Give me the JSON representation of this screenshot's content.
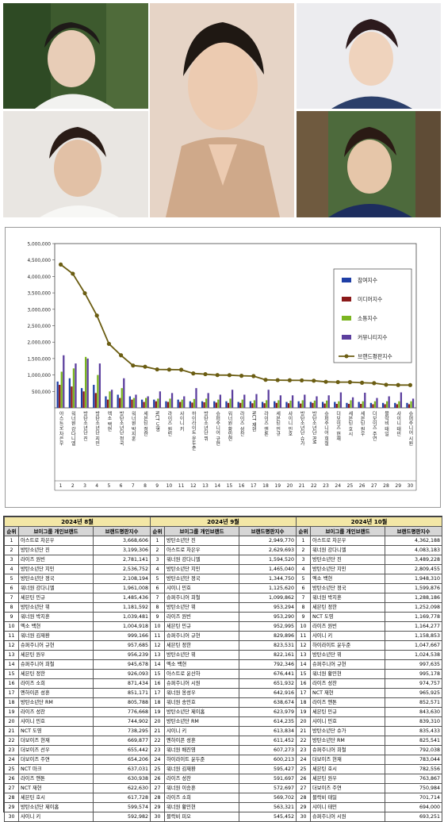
{
  "photos": [
    {
      "name": "photo-top-left",
      "desc": "portrait"
    },
    {
      "name": "photo-bottom-left",
      "desc": "portrait"
    },
    {
      "name": "photo-center",
      "desc": "portrait"
    },
    {
      "name": "photo-top-right",
      "desc": "portrait"
    },
    {
      "name": "photo-bottom-right",
      "desc": "portrait"
    }
  ],
  "chart_data": {
    "type": "bar",
    "ylim": [
      0,
      5000000
    ],
    "yticks": [
      "5,000,000",
      "4,500,000",
      "4,000,000",
      "3,500,000",
      "3,000,000",
      "2,500,000",
      "2,000,000",
      "1,500,000",
      "1,000,000",
      "500,000"
    ],
    "categories": [
      "아스트로 차은우",
      "워너원 강다니엘",
      "방탄소년단 진",
      "방탄소년단 지민",
      "엑소 백현",
      "방탄소년단 정국",
      "워너원 박지훈",
      "세븐틴 정한",
      "NCT 도영",
      "라이즈 원빈",
      "샤이니 키",
      "하이라이트 윤두준",
      "방탄소년단 뷔",
      "슈퍼주니어 규현",
      "워너원 황민현",
      "라이즈 성찬",
      "NCT 재현",
      "라이즈 앤톤",
      "세븐틴 민규",
      "샤이니 민호",
      "방탄소년단 슈가",
      "방탄소년단 RM",
      "슈퍼주니어 희철",
      "더보이즈 현재",
      "세븐틴 호시",
      "세븐틴 원우",
      "더보이즈 주연",
      "블락비 태일",
      "샤이니 태민",
      "슈퍼주니어 시원"
    ],
    "ranks": [
      "1",
      "2",
      "3",
      "4",
      "5",
      "6",
      "7",
      "8",
      "9",
      "10",
      "11",
      "12",
      "13",
      "14",
      "15",
      "16",
      "17",
      "18",
      "19",
      "20",
      "21",
      "22",
      "23",
      "24",
      "25",
      "26",
      "27",
      "28",
      "29",
      "30"
    ],
    "series": [
      {
        "name": "참여지수",
        "color": "#1f3fa6",
        "values": [
          800000,
          900000,
          600000,
          700000,
          350000,
          400000,
          350000,
          250000,
          250000,
          200000,
          250000,
          200000,
          200000,
          200000,
          200000,
          180000,
          200000,
          180000,
          200000,
          180000,
          200000,
          180000,
          180000,
          180000,
          150000,
          180000,
          150000,
          150000,
          150000,
          150000
        ]
      },
      {
        "name": "미디어지수",
        "color": "#8b1a1a",
        "values": [
          700000,
          650000,
          500000,
          450000,
          250000,
          300000,
          250000,
          180000,
          200000,
          180000,
          180000,
          160000,
          170000,
          160000,
          150000,
          150000,
          140000,
          140000,
          150000,
          140000,
          130000,
          150000,
          130000,
          120000,
          120000,
          120000,
          110000,
          110000,
          110000,
          110000
        ]
      },
      {
        "name": "소통지수",
        "color": "#7bb520",
        "values": [
          1100000,
          1200000,
          1550000,
          1000000,
          500000,
          600000,
          300000,
          300000,
          280000,
          280000,
          250000,
          270000,
          280000,
          250000,
          280000,
          250000,
          230000,
          230000,
          230000,
          220000,
          230000,
          220000,
          220000,
          200000,
          230000,
          200000,
          200000,
          200000,
          200000,
          200000
        ]
      },
      {
        "name": "커뮤니티지수",
        "color": "#5c3f9e",
        "values": [
          1600000,
          1350000,
          1500000,
          1350000,
          550000,
          900000,
          400000,
          350000,
          500000,
          450000,
          350000,
          600000,
          450000,
          400000,
          550000,
          400000,
          420000,
          550000,
          380000,
          380000,
          400000,
          350000,
          380000,
          470000,
          320000,
          460000,
          300000,
          350000,
          470000,
          280000
        ]
      },
      {
        "name": "브랜드평판지수",
        "color": "#6b5d12",
        "line": true,
        "values": [
          4362188,
          4083183,
          3489228,
          2809455,
          1948310,
          1599876,
          1288186,
          1252098,
          1169778,
          1164277,
          1158853,
          1047667,
          1024538,
          997635,
          995178,
          974757,
          965925,
          852571,
          843630,
          839310,
          835433,
          825541,
          792038,
          783044,
          782556,
          763867,
          750984,
          701714,
          694000,
          693251
        ]
      }
    ]
  },
  "tables": [
    {
      "month": "2024년 8월",
      "headers": [
        "순위",
        "브이그룹 개인브랜드",
        "브랜드평판지수"
      ],
      "rows": [
        [
          "1",
          "아스트로 차은우",
          "3,668,606"
        ],
        [
          "2",
          "방탄소년단 진",
          "3,199,306"
        ],
        [
          "3",
          "라이즈 원빈",
          "2,781,141"
        ],
        [
          "4",
          "방탄소년단 지민",
          "2,536,752"
        ],
        [
          "5",
          "방탄소년단 정국",
          "2,108,194"
        ],
        [
          "6",
          "워너원 강다니엘",
          "1,961,008"
        ],
        [
          "7",
          "세븐틴 민규",
          "1,485,436"
        ],
        [
          "8",
          "방탄소년단 뷔",
          "1,181,592"
        ],
        [
          "9",
          "워너원 박지훈",
          "1,039,481"
        ],
        [
          "10",
          "엑소 백현",
          "1,004,918"
        ],
        [
          "11",
          "워너원 김재환",
          "999,166"
        ],
        [
          "12",
          "슈퍼주니어 규현",
          "957,685"
        ],
        [
          "13",
          "세븐틴 원우",
          "956,239"
        ],
        [
          "14",
          "슈퍼주니어 희철",
          "945,678"
        ],
        [
          "15",
          "세븐틴 정한",
          "926,093"
        ],
        [
          "16",
          "라이즈 소희",
          "871,434"
        ],
        [
          "17",
          "엔하이픈 성훈",
          "851,171"
        ],
        [
          "18",
          "방탄소년단 RM",
          "805,788"
        ],
        [
          "19",
          "라이즈 성찬",
          "776,668"
        ],
        [
          "20",
          "샤이니 민호",
          "744,902"
        ],
        [
          "21",
          "NCT 도영",
          "738,295"
        ],
        [
          "22",
          "더보이즈 현재",
          "669,877"
        ],
        [
          "23",
          "더보이즈 선우",
          "655,442"
        ],
        [
          "24",
          "더보이즈 주연",
          "654,206"
        ],
        [
          "25",
          "NCT 마크",
          "637,031"
        ],
        [
          "26",
          "라이즈 앤톤",
          "630,938"
        ],
        [
          "27",
          "NCT 재현",
          "622,630"
        ],
        [
          "28",
          "세븐틴 호시",
          "617,728"
        ],
        [
          "29",
          "방탄소년단 제이홉",
          "599,574"
        ],
        [
          "30",
          "샤이니 키",
          "592,982"
        ]
      ]
    },
    {
      "month": "2024년 9월",
      "headers": [
        "순위",
        "브이그룹 개인브랜드",
        "브랜드평판지수"
      ],
      "rows": [
        [
          "1",
          "방탄소년단 진",
          "2,949,770"
        ],
        [
          "2",
          "아스트로 차은우",
          "2,629,693"
        ],
        [
          "3",
          "워너원 강다니엘",
          "1,594,520"
        ],
        [
          "4",
          "방탄소년단 지민",
          "1,465,040"
        ],
        [
          "5",
          "방탄소년단 정국",
          "1,344,750"
        ],
        [
          "6",
          "샤이니 민호",
          "1,125,620"
        ],
        [
          "7",
          "슈퍼주니어 희철",
          "1,099,862"
        ],
        [
          "8",
          "방탄소년단 뷔",
          "953,294"
        ],
        [
          "9",
          "라이즈 원빈",
          "953,290"
        ],
        [
          "10",
          "세븐틴 민규",
          "952,995"
        ],
        [
          "11",
          "슈퍼주니어 규현",
          "829,896"
        ],
        [
          "12",
          "세븐틴 정한",
          "823,531"
        ],
        [
          "13",
          "방탄소년단 뷔",
          "822,161"
        ],
        [
          "14",
          "엑소 백현",
          "792,346"
        ],
        [
          "15",
          "아스트로 윤산하",
          "676,441"
        ],
        [
          "16",
          "슈퍼주니어 시원",
          "651,932"
        ],
        [
          "17",
          "워너원 옹성우",
          "642,916"
        ],
        [
          "18",
          "워너원 송민호",
          "638,674"
        ],
        [
          "19",
          "방탄소년단 제이홉",
          "623,979"
        ],
        [
          "20",
          "방탄소년단 RM",
          "614,235"
        ],
        [
          "21",
          "샤이니 키",
          "613,834"
        ],
        [
          "22",
          "엔하이픈 성훈",
          "611,452"
        ],
        [
          "23",
          "워너원 배진영",
          "607,273"
        ],
        [
          "24",
          "하이라이트 윤두준",
          "600,213"
        ],
        [
          "25",
          "워너원 김재환",
          "595,427"
        ],
        [
          "26",
          "라이즈 성찬",
          "591,697"
        ],
        [
          "27",
          "워너원 이승훈",
          "572,697"
        ],
        [
          "28",
          "라이즈 소희",
          "569,702"
        ],
        [
          "29",
          "워너원 황민현",
          "563,321"
        ],
        [
          "30",
          "블락비 피오",
          "545,452"
        ]
      ]
    },
    {
      "month": "2024년 10월",
      "headers": [
        "순위",
        "브이그룹 개인브랜드",
        "브랜드평판지수"
      ],
      "rows": [
        [
          "1",
          "아스트로 차은우",
          "4,362,188"
        ],
        [
          "2",
          "워너원 강다니엘",
          "4,083,183"
        ],
        [
          "3",
          "방탄소년단 진",
          "3,489,228"
        ],
        [
          "4",
          "방탄소년단 지민",
          "2,809,455"
        ],
        [
          "5",
          "엑소 백현",
          "1,948,310"
        ],
        [
          "6",
          "방탄소년단 정국",
          "1,599,876"
        ],
        [
          "7",
          "워너원 박지훈",
          "1,288,186"
        ],
        [
          "8",
          "세븐틴 정한",
          "1,252,098"
        ],
        [
          "9",
          "NCT 도영",
          "1,169,778"
        ],
        [
          "10",
          "라이즈 원빈",
          "1,164,277"
        ],
        [
          "11",
          "샤이니 키",
          "1,158,853"
        ],
        [
          "12",
          "하이라이트 윤두준",
          "1,047,667"
        ],
        [
          "13",
          "방탄소년단 뷔",
          "1,024,538"
        ],
        [
          "14",
          "슈퍼주니어 규현",
          "997,635"
        ],
        [
          "15",
          "워너원 황민현",
          "995,178"
        ],
        [
          "16",
          "라이즈 성찬",
          "974,757"
        ],
        [
          "17",
          "NCT 재현",
          "965,925"
        ],
        [
          "18",
          "라이즈 앤톤",
          "852,571"
        ],
        [
          "19",
          "세븐틴 민규",
          "843,630"
        ],
        [
          "20",
          "샤이니 민호",
          "839,310"
        ],
        [
          "21",
          "방탄소년단 슈가",
          "835,433"
        ],
        [
          "22",
          "방탄소년단 RM",
          "825,541"
        ],
        [
          "23",
          "슈퍼주니어 희철",
          "792,038"
        ],
        [
          "24",
          "더보이즈 현재",
          "783,044"
        ],
        [
          "25",
          "세븐틴 호시",
          "782,556"
        ],
        [
          "26",
          "세븐틴 원우",
          "763,867"
        ],
        [
          "27",
          "더보이즈 주연",
          "750,984"
        ],
        [
          "28",
          "블락비 태일",
          "701,714"
        ],
        [
          "29",
          "샤이니 태민",
          "694,000"
        ],
        [
          "30",
          "슈퍼주니어 시원",
          "693,251"
        ]
      ]
    }
  ]
}
